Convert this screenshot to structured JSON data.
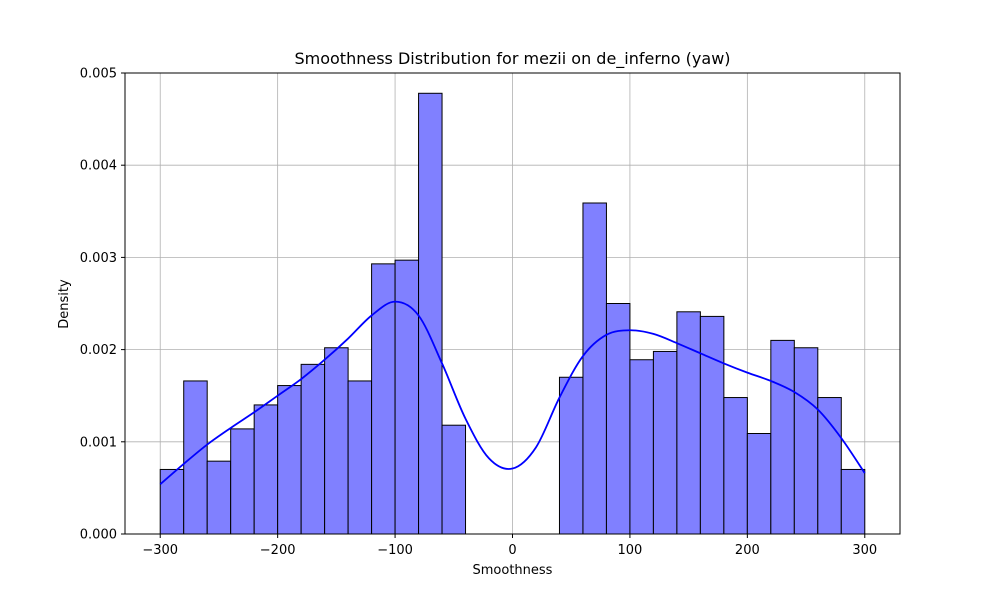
{
  "chart_data": {
    "type": "bar",
    "title": "Smoothness Distribution for mezii on de_inferno (yaw)",
    "xlabel": "Smoothness",
    "ylabel": "Density",
    "xlim": [
      -330,
      330
    ],
    "ylim": [
      0,
      0.005
    ],
    "x_ticks": [
      -300,
      -200,
      -100,
      0,
      100,
      200,
      300
    ],
    "y_ticks": [
      0.0,
      0.001,
      0.002,
      0.003,
      0.004,
      0.005
    ],
    "x_tick_labels": [
      "−300",
      "−200",
      "−100",
      "0",
      "100",
      "200",
      "300"
    ],
    "y_tick_labels": [
      "0.000",
      "0.001",
      "0.002",
      "0.003",
      "0.004",
      "0.005"
    ],
    "grid": true,
    "bin_width": 20,
    "bins": [
      {
        "x0": -300,
        "x1": -280,
        "density": 0.0007
      },
      {
        "x0": -280,
        "x1": -260,
        "density": 0.00166
      },
      {
        "x0": -260,
        "x1": -240,
        "density": 0.00079
      },
      {
        "x0": -240,
        "x1": -220,
        "density": 0.00114
      },
      {
        "x0": -220,
        "x1": -200,
        "density": 0.0014
      },
      {
        "x0": -200,
        "x1": -180,
        "density": 0.00161
      },
      {
        "x0": -180,
        "x1": -160,
        "density": 0.00184
      },
      {
        "x0": -160,
        "x1": -140,
        "density": 0.00202
      },
      {
        "x0": -140,
        "x1": -120,
        "density": 0.00166
      },
      {
        "x0": -120,
        "x1": -100,
        "density": 0.00293
      },
      {
        "x0": -100,
        "x1": -80,
        "density": 0.00297
      },
      {
        "x0": -80,
        "x1": -60,
        "density": 0.00478
      },
      {
        "x0": -60,
        "x1": -40,
        "density": 0.00118
      },
      {
        "x0": 40,
        "x1": 60,
        "density": 0.0017
      },
      {
        "x0": 60,
        "x1": 80,
        "density": 0.00359
      },
      {
        "x0": 80,
        "x1": 100,
        "density": 0.0025
      },
      {
        "x0": 100,
        "x1": 120,
        "density": 0.00189
      },
      {
        "x0": 120,
        "x1": 140,
        "density": 0.00198
      },
      {
        "x0": 140,
        "x1": 160,
        "density": 0.00241
      },
      {
        "x0": 160,
        "x1": 180,
        "density": 0.00236
      },
      {
        "x0": 180,
        "x1": 200,
        "density": 0.00148
      },
      {
        "x0": 200,
        "x1": 220,
        "density": 0.00109
      },
      {
        "x0": 220,
        "x1": 240,
        "density": 0.0021
      },
      {
        "x0": 240,
        "x1": 260,
        "density": 0.00202
      },
      {
        "x0": 260,
        "x1": 280,
        "density": 0.00148
      },
      {
        "x0": 280,
        "x1": 300,
        "density": 0.0007
      }
    ],
    "kde": {
      "x": [
        -300,
        -280,
        -260,
        -240,
        -220,
        -200,
        -180,
        -160,
        -140,
        -120,
        -100,
        -80,
        -60,
        -40,
        -20,
        0,
        20,
        40,
        60,
        80,
        100,
        120,
        140,
        160,
        180,
        200,
        220,
        240,
        260,
        280,
        300
      ],
      "y": [
        0.00054,
        0.00076,
        0.00097,
        0.00115,
        0.00132,
        0.0015,
        0.00168,
        0.00189,
        0.00212,
        0.00237,
        0.00252,
        0.00237,
        0.00185,
        0.00125,
        0.00082,
        0.00071,
        0.00094,
        0.00148,
        0.00193,
        0.00216,
        0.00221,
        0.00217,
        0.00207,
        0.00196,
        0.00185,
        0.00175,
        0.00166,
        0.00154,
        0.00135,
        0.00104,
        0.00066
      ]
    },
    "colors": {
      "bar_fill": "#8080ff",
      "bar_edge": "#000000",
      "kde_line": "#0000ff",
      "grid": "#b0b0b0"
    }
  }
}
